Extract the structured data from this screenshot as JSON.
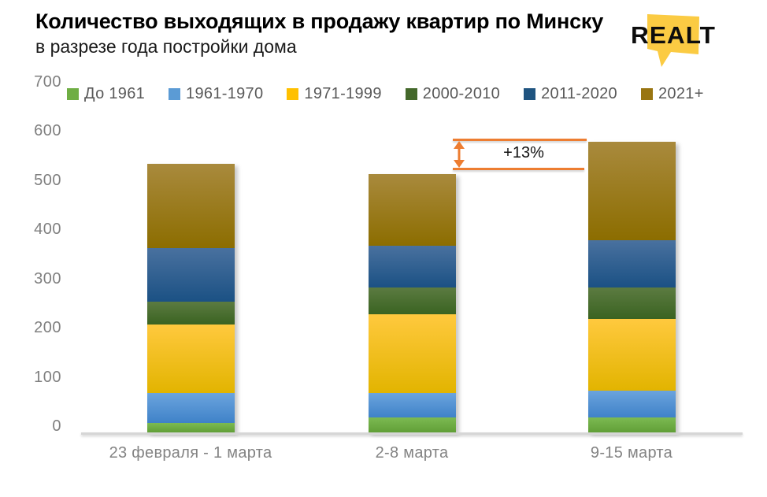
{
  "header": {
    "title": "Количество выходящих в продажу квартир по Минску",
    "subtitle": "в разрезе года постройки дома",
    "logo_text": "Realt",
    "logo_bg_color": "#FBCB43",
    "logo_text_color": "#0d0d0d"
  },
  "annotation": {
    "label": "+13%",
    "color": "#ED7D31"
  },
  "chart_data": {
    "type": "bar",
    "stacked": true,
    "title": "Количество выходящих в продажу квартир по Минску",
    "subtitle": "в разрезе года постройки дома",
    "categories": [
      "23 февраля - 1 марта",
      "2-8 марта",
      "9-15 марта"
    ],
    "series": [
      {
        "name": "До 1961",
        "color": "#6FAE44",
        "gradient_top": "#7CBA52",
        "gradient_bottom": "#619F37",
        "values": [
          20,
          30,
          30
        ]
      },
      {
        "name": "1961-1970",
        "color": "#5B9BD5",
        "gradient_top": "#6BA4DE",
        "gradient_bottom": "#3F82C8",
        "values": [
          60,
          50,
          55
        ]
      },
      {
        "name": "1971-1999",
        "color": "#FFC000",
        "gradient_top": "#FFC93E",
        "gradient_bottom": "#E2B400",
        "values": [
          140,
          160,
          145
        ]
      },
      {
        "name": "2000-2010",
        "color": "#44682B",
        "gradient_top": "#5C7B41",
        "gradient_bottom": "#3A6321",
        "values": [
          45,
          55,
          65
        ]
      },
      {
        "name": "2011-2020",
        "color": "#1F5480",
        "gradient_top": "#49719F",
        "gradient_bottom": "#1B5184",
        "values": [
          110,
          85,
          95
        ]
      },
      {
        "name": "2021+",
        "color": "#997511",
        "gradient_top": "#A98A3D",
        "gradient_bottom": "#8C6D00",
        "values": [
          170,
          145,
          200
        ]
      }
    ],
    "ylim": [
      0,
      700
    ],
    "yticks": [
      "0",
      "100",
      "200",
      "300",
      "400",
      "500",
      "600",
      "700"
    ],
    "grid": false,
    "legend_position": "top",
    "annotation_label": "+13%"
  }
}
